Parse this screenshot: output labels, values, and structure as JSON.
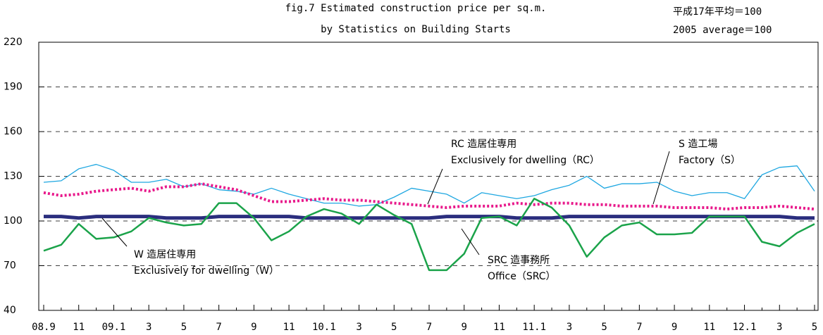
{
  "chart_data": {
    "type": "line",
    "title": [
      "fig.7 Estimated construction price per sq.m.",
      "by Statistics on Building Starts"
    ],
    "note": [
      "平成17年平均＝100",
      "2005 average＝100"
    ],
    "categories": [
      "08.9",
      null,
      "11",
      null,
      "09.1",
      null,
      "3",
      null,
      "5",
      null,
      "7",
      null,
      "9",
      null,
      "11",
      null,
      "10.1",
      null,
      "3",
      null,
      "5",
      null,
      "7",
      null,
      "9",
      null,
      "11",
      null,
      "11.1",
      null,
      "3",
      null,
      "5",
      null,
      "7",
      null,
      "9",
      null,
      "11",
      null,
      "12.1",
      null,
      "3",
      null,
      "5"
    ],
    "ylim": [
      40,
      220
    ],
    "yticks": [
      40,
      70,
      100,
      130,
      160,
      190,
      220
    ],
    "grid": true,
    "series": [
      {
        "name": "Factory（S）",
        "name_ja": "S 造工場",
        "color": "#1ea7e1",
        "width": 1.3,
        "dash": "none",
        "values": [
          126,
          127,
          135,
          138,
          134,
          126,
          126,
          128,
          123,
          125,
          121,
          120,
          118,
          122,
          118,
          115,
          112,
          112,
          110,
          111,
          116,
          122,
          120,
          118,
          112,
          119,
          117,
          115,
          117,
          121,
          124,
          130,
          122,
          125,
          125,
          126,
          120,
          117,
          119,
          119,
          115,
          131,
          136,
          137,
          120
        ]
      },
      {
        "name": "Exclusively for dwelling（RC）",
        "name_ja": "RC 造居住専用",
        "color": "#e8198b",
        "width": 4,
        "dash": "3 3",
        "values": [
          119,
          117,
          118,
          120,
          121,
          122,
          120,
          123,
          123,
          125,
          123,
          121,
          117,
          113,
          113,
          114,
          115,
          114,
          114,
          113,
          112,
          111,
          110,
          109,
          110,
          110,
          110,
          112,
          111,
          112,
          112,
          111,
          111,
          110,
          110,
          110,
          109,
          109,
          109,
          108,
          109,
          109,
          110,
          109,
          108
        ]
      },
      {
        "name": "Exclusively for dwelling（W）",
        "name_ja": "W 造居住専用",
        "color": "#2b2e7e",
        "width": 5,
        "dash": "none",
        "values": [
          103,
          103,
          102,
          103,
          103,
          103,
          103,
          102,
          102,
          102,
          103,
          103,
          103,
          103,
          103,
          102,
          102,
          102,
          102,
          102,
          102,
          102,
          102,
          103,
          103,
          103,
          103,
          102,
          102,
          102,
          103,
          103,
          103,
          103,
          103,
          103,
          103,
          103,
          103,
          103,
          103,
          103,
          103,
          102,
          102
        ]
      },
      {
        "name": "Office（SRC）",
        "name_ja": "SRC 造事務所",
        "color": "#1ba34a",
        "width": 2.5,
        "dash": "none",
        "values": [
          80,
          84,
          98,
          88,
          89,
          93,
          102,
          99,
          97,
          98,
          112,
          112,
          102,
          87,
          93,
          103,
          108,
          105,
          98,
          111,
          104,
          98,
          67,
          67,
          78,
          102,
          103,
          97,
          115,
          109,
          97,
          76,
          89,
          97,
          99,
          91,
          91,
          92,
          103,
          103,
          103,
          86,
          83,
          92,
          98
        ]
      }
    ]
  }
}
